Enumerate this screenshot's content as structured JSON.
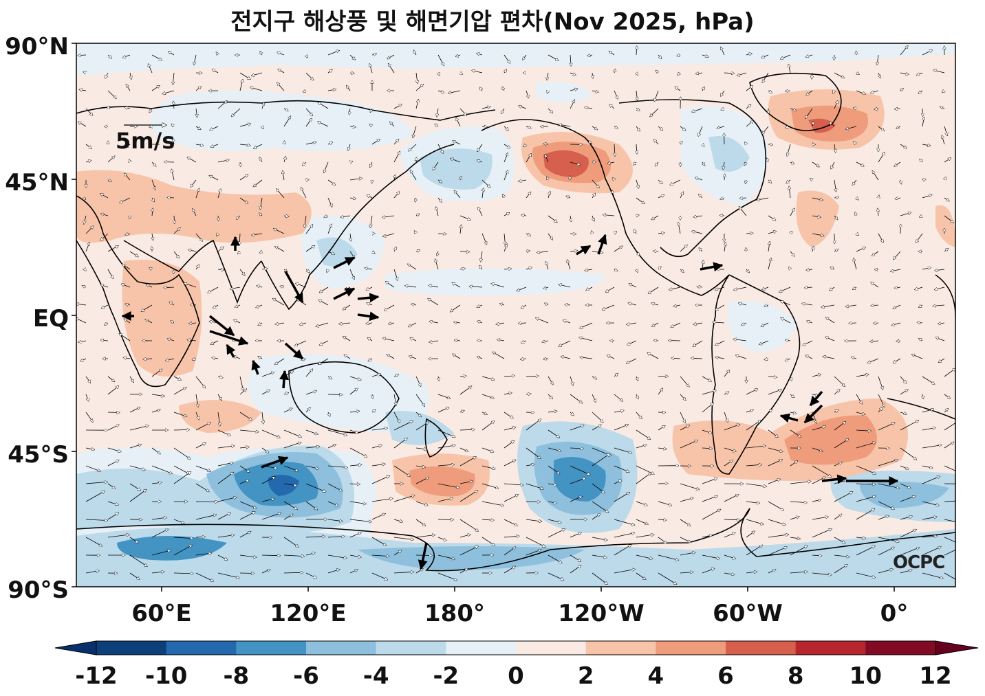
{
  "title": "전지구 해상풍 및 해면기압 편차(Nov 2025, hPa)",
  "lat_labels": [
    "90°N",
    "45°N",
    "EQ",
    "45°S",
    "90°S"
  ],
  "lon_labels": [
    "60°E",
    "120°E",
    "180°",
    "120°W",
    "60°W",
    "0°"
  ],
  "wind_scale_label": "5m/s",
  "watermark": "OCPC",
  "colorbar": {
    "ticks": [
      "-12",
      "-10",
      "-8",
      "-6",
      "-4",
      "-2",
      "0",
      "2",
      "4",
      "6",
      "8",
      "10",
      "12"
    ],
    "colors": [
      "#0d3f7a",
      "#2469ad",
      "#4393c3",
      "#8ec0dd",
      "#bcdaea",
      "#e6f0f6",
      "#faeae4",
      "#f7c4a9",
      "#ee9c7c",
      "#d6604d",
      "#b7252e",
      "#830a24"
    ],
    "extend_low_color": "#08306b",
    "extend_high_color": "#67001f"
  },
  "colors": {
    "ocean_base": "#faeae4",
    "neg_weak": "#e6f0f6",
    "neg_mid": "#bcdaea",
    "neg_strong": "#8ec0dd",
    "neg_vstrong": "#4393c3",
    "neg_max": "#2469ad",
    "pos_weak": "#f7c4a9",
    "pos_mid": "#ee9c7c",
    "pos_strong": "#d6604d",
    "coastline": "#000000"
  }
}
